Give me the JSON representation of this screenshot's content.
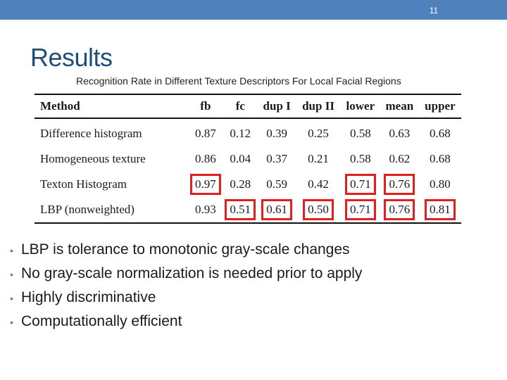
{
  "slide": {
    "number": "11",
    "title": "Results",
    "caption": "Recognition Rate in Different Texture Descriptors For Local Facial Regions"
  },
  "table": {
    "headers": [
      "Method",
      "fb",
      "fc",
      "dup I",
      "dup II",
      "lower",
      "mean",
      "upper"
    ],
    "rows": [
      {
        "method": "Difference histogram",
        "values": [
          "0.87",
          "0.12",
          "0.39",
          "0.25",
          "0.58",
          "0.63",
          "0.68"
        ],
        "highlighted": [
          false,
          false,
          false,
          false,
          false,
          false,
          false
        ]
      },
      {
        "method": "Homogeneous texture",
        "values": [
          "0.86",
          "0.04",
          "0.37",
          "0.21",
          "0.58",
          "0.62",
          "0.68"
        ],
        "highlighted": [
          false,
          false,
          false,
          false,
          false,
          false,
          false
        ]
      },
      {
        "method": "Texton Histogram",
        "values": [
          "0.97",
          "0.28",
          "0.59",
          "0.42",
          "0.71",
          "0.76",
          "0.80"
        ],
        "highlighted": [
          true,
          false,
          false,
          false,
          true,
          true,
          false
        ]
      },
      {
        "method": "LBP (nonweighted)",
        "values": [
          "0.93",
          "0.51",
          "0.61",
          "0.50",
          "0.71",
          "0.76",
          "0.81"
        ],
        "highlighted": [
          false,
          true,
          true,
          true,
          true,
          true,
          true
        ]
      }
    ],
    "highlight_color": "#e02020"
  },
  "bullets": [
    "LBP is tolerance to monotonic gray-scale changes",
    "No gray-scale normalization is needed prior to apply",
    "Highly discriminative",
    "Computationally efficient"
  ],
  "colors": {
    "accent": "#4f81bd",
    "title": "#1f4e79"
  }
}
